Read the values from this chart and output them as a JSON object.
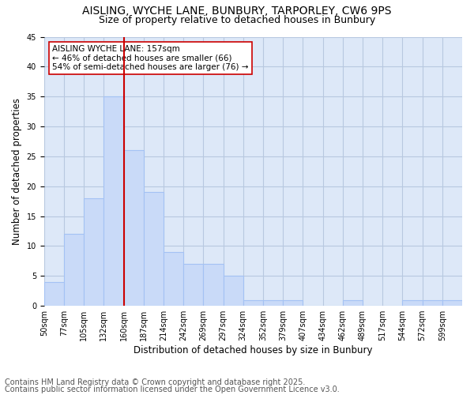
{
  "title1": "AISLING, WYCHE LANE, BUNBURY, TARPORLEY, CW6 9PS",
  "title2": "Size of property relative to detached houses in Bunbury",
  "xlabel": "Distribution of detached houses by size in Bunbury",
  "ylabel": "Number of detached properties",
  "bin_labels": [
    "50sqm",
    "77sqm",
    "105sqm",
    "132sqm",
    "160sqm",
    "187sqm",
    "214sqm",
    "242sqm",
    "269sqm",
    "297sqm",
    "324sqm",
    "352sqm",
    "379sqm",
    "407sqm",
    "434sqm",
    "462sqm",
    "489sqm",
    "517sqm",
    "544sqm",
    "572sqm",
    "599sqm"
  ],
  "bar_heights": [
    4,
    12,
    18,
    35,
    26,
    19,
    9,
    7,
    7,
    5,
    1,
    1,
    1,
    0,
    0,
    1,
    0,
    0,
    1,
    1,
    1
  ],
  "bar_color": "#c9daf8",
  "bar_edge_color": "#a4c2f4",
  "vline_index": 4,
  "vline_color": "#cc0000",
  "annotation_text": "AISLING WYCHE LANE: 157sqm\n← 46% of detached houses are smaller (66)\n54% of semi-detached houses are larger (76) →",
  "annotation_box_color": "#ffffff",
  "annotation_box_edge_color": "#cc0000",
  "ylim": [
    0,
    45
  ],
  "yticks": [
    0,
    5,
    10,
    15,
    20,
    25,
    30,
    35,
    40,
    45
  ],
  "footer1": "Contains HM Land Registry data © Crown copyright and database right 2025.",
  "footer2": "Contains public sector information licensed under the Open Government Licence v3.0.",
  "bg_color": "#dde8f8",
  "grid_color": "#b8c8e0",
  "title_fontsize": 10,
  "subtitle_fontsize": 9,
  "axis_label_fontsize": 8.5,
  "tick_fontsize": 7,
  "footer_fontsize": 7,
  "annotation_fontsize": 7.5
}
